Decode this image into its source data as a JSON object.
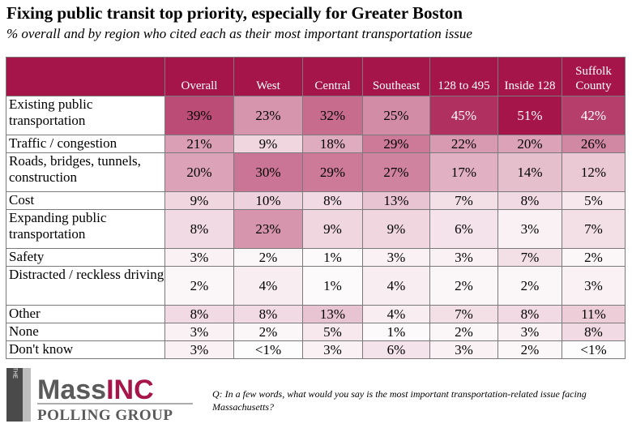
{
  "title": "Fixing public transit top priority, especially for Greater Boston",
  "subtitle": "% overall and by region who cited each as their most important transportation issue",
  "chart_data": {
    "type": "table",
    "columns": [
      "Overall",
      "West",
      "Central",
      "Southeast",
      "128 to 495",
      "Inside 128",
      "Suffolk County"
    ],
    "rows": [
      {
        "label": "Existing public transportation",
        "display": [
          "39%",
          "23%",
          "32%",
          "25%",
          "45%",
          "51%",
          "42%"
        ],
        "values": [
          39,
          23,
          32,
          25,
          45,
          51,
          42
        ]
      },
      {
        "label": "Traffic / congestion",
        "display": [
          "21%",
          "9%",
          "18%",
          "29%",
          "22%",
          "20%",
          "26%"
        ],
        "values": [
          21,
          9,
          18,
          29,
          22,
          20,
          26
        ]
      },
      {
        "label": "Roads, bridges, tunnels, construction",
        "display": [
          "20%",
          "30%",
          "29%",
          "27%",
          "17%",
          "14%",
          "12%"
        ],
        "values": [
          20,
          30,
          29,
          27,
          17,
          14,
          12
        ]
      },
      {
        "label": "Cost",
        "display": [
          "9%",
          "10%",
          "8%",
          "13%",
          "7%",
          "8%",
          "5%"
        ],
        "values": [
          9,
          10,
          8,
          13,
          7,
          8,
          5
        ]
      },
      {
        "label": "Expanding public transportation",
        "display": [
          "8%",
          "23%",
          "9%",
          "9%",
          "6%",
          "3%",
          "7%"
        ],
        "values": [
          8,
          23,
          9,
          9,
          6,
          3,
          7
        ]
      },
      {
        "label": "Safety",
        "display": [
          "3%",
          "2%",
          "1%",
          "3%",
          "3%",
          "7%",
          "2%"
        ],
        "values": [
          3,
          2,
          1,
          3,
          3,
          7,
          2
        ]
      },
      {
        "label": "Distracted / reckless driving",
        "display": [
          "2%",
          "4%",
          "1%",
          "4%",
          "2%",
          "2%",
          "3%"
        ],
        "values": [
          2,
          4,
          1,
          4,
          2,
          2,
          3
        ]
      },
      {
        "label": "Other",
        "display": [
          "8%",
          "8%",
          "13%",
          "4%",
          "7%",
          "8%",
          "11%"
        ],
        "values": [
          8,
          8,
          13,
          4,
          7,
          8,
          11
        ]
      },
      {
        "label": "None",
        "display": [
          "3%",
          "2%",
          "5%",
          "1%",
          "2%",
          "3%",
          "8%"
        ],
        "values": [
          3,
          2,
          5,
          1,
          2,
          3,
          8
        ]
      },
      {
        "label": "Don't know",
        "display": [
          "3%",
          "<1%",
          "3%",
          "6%",
          "3%",
          "2%",
          "<1%"
        ],
        "values": [
          3,
          0.5,
          3,
          6,
          3,
          2,
          0.5
        ]
      }
    ],
    "colors": {
      "header": "#a5154a",
      "max_fill": "#a5154a",
      "header_text": "#ffffff"
    }
  },
  "logo": {
    "the": "THE",
    "mass": "Mass",
    "inc": "INC",
    "polling": "POLLING GROUP",
    "colors": {
      "mass": "#5a5a5a",
      "inc": "#a5154a",
      "bar_dark": "#4a4a4a",
      "bar_light": "#bdbdbd"
    }
  },
  "question": "Q: In a few words, what would you say is the most important transportation-related issue facing Massachusetts?"
}
